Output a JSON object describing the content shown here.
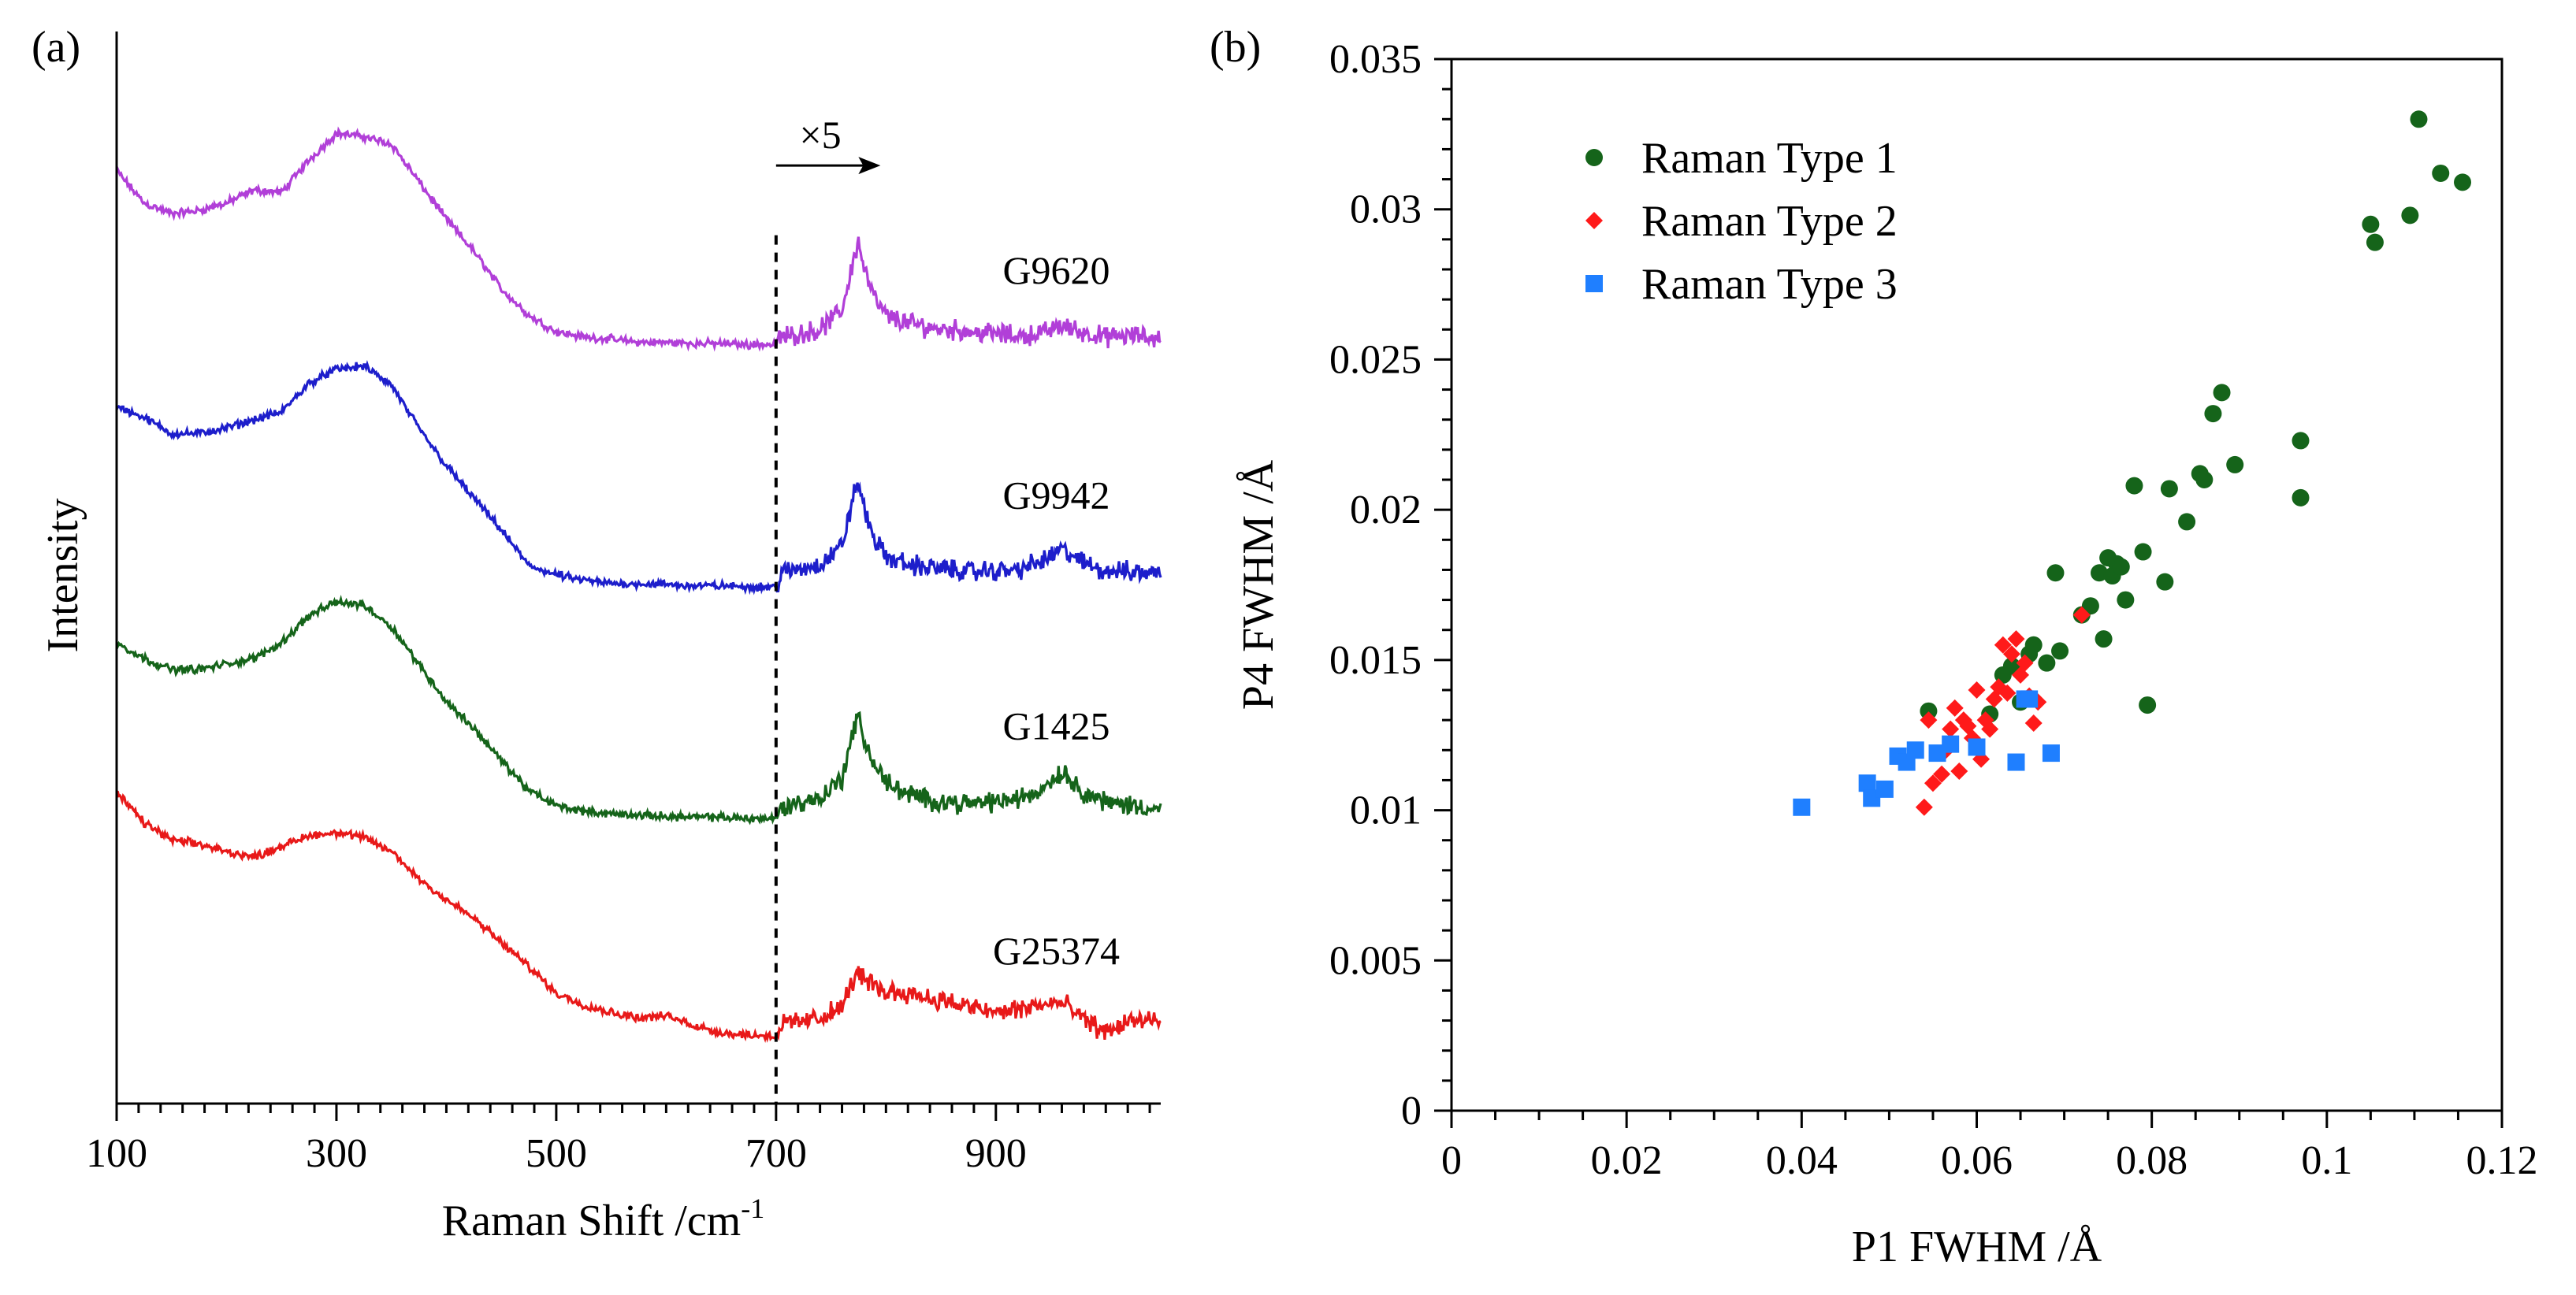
{
  "chart_data": [
    {
      "panel": "(a)",
      "type": "line",
      "title": "",
      "xlabel": "Raman Shift /cm",
      "xlabel_sup": "-1",
      "ylabel": "Intensity",
      "xlim": [
        100,
        1050
      ],
      "ylim": [
        0,
        100
      ],
      "xticks": [
        100,
        300,
        500,
        700,
        900
      ],
      "xtick_labels": [
        "100",
        "300",
        "500",
        "700",
        "900"
      ],
      "minor_tick_step": 20,
      "divider_x": 700,
      "divider_style": "dashed",
      "zoom_annotation": "×5",
      "zoom_arrow": {
        "from": 700,
        "to": 795
      },
      "noise_amplitudes": {
        "G9620": 0.45,
        "G9942": 0.45,
        "G1425": 0.45,
        "G25374": 0.45
      },
      "series": [
        {
          "name": "G9620",
          "color": "#b13fd8",
          "label_x": 955,
          "label_y": 76.5,
          "x": [
            100,
            125,
            150,
            175,
            200,
            225,
            250,
            275,
            300,
            325,
            350,
            375,
            400,
            425,
            450,
            475,
            500,
            525,
            550,
            575,
            600,
            625,
            650,
            675,
            700,
            705,
            720,
            740,
            760,
            770,
            775,
            780,
            790,
            800,
            820,
            840,
            860,
            880,
            900,
            920,
            940,
            960,
            980,
            1000,
            1025,
            1050
          ],
          "y": [
            87,
            84,
            83,
            83.3,
            84,
            85.2,
            85,
            88,
            90.5,
            90.2,
            89.5,
            86,
            82.5,
            79.5,
            76,
            73.5,
            72,
            71.5,
            71.3,
            71,
            71,
            70.9,
            70.9,
            70.8,
            70.8,
            71.5,
            71.8,
            72.2,
            74,
            78.5,
            80.5,
            78,
            75,
            73.5,
            72.8,
            72.4,
            72.2,
            72,
            71.8,
            71.6,
            71.8,
            72.6,
            71.9,
            71.5,
            71.6,
            71.4
          ]
        },
        {
          "name": "G9942",
          "color": "#1d1ecb",
          "label_x": 955,
          "label_y": 55.5,
          "x": [
            100,
            125,
            150,
            175,
            200,
            225,
            250,
            275,
            300,
            325,
            350,
            375,
            400,
            425,
            450,
            475,
            500,
            525,
            550,
            575,
            600,
            625,
            650,
            675,
            700,
            705,
            720,
            740,
            760,
            770,
            775,
            780,
            790,
            800,
            820,
            840,
            860,
            880,
            900,
            920,
            940,
            960,
            980,
            1000,
            1025,
            1050
          ],
          "y": [
            65,
            64,
            62.5,
            62.5,
            63,
            63.8,
            64.5,
            67.2,
            68.5,
            68.8,
            67,
            63,
            59.5,
            56.5,
            53.5,
            50.2,
            49.3,
            48.8,
            48.5,
            48.5,
            48.4,
            48.3,
            48.3,
            48.2,
            48.2,
            49.5,
            49.8,
            50.3,
            52,
            56.5,
            58,
            55.5,
            52.5,
            51,
            50.3,
            50,
            49.8,
            49.6,
            49.7,
            49.8,
            50.5,
            51.7,
            50.4,
            49.7,
            49.6,
            49.5
          ]
        },
        {
          "name": "G1425",
          "color": "#15641a",
          "label_x": 955,
          "label_y": 34,
          "x": [
            100,
            125,
            150,
            175,
            200,
            225,
            250,
            275,
            300,
            325,
            350,
            375,
            400,
            425,
            450,
            475,
            500,
            525,
            550,
            575,
            600,
            625,
            650,
            675,
            700,
            705,
            720,
            740,
            760,
            770,
            775,
            780,
            790,
            800,
            820,
            840,
            860,
            880,
            900,
            920,
            940,
            960,
            980,
            1000,
            1025,
            1050
          ],
          "y": [
            43,
            41.5,
            40.5,
            40.5,
            41,
            41.5,
            43,
            45.5,
            46.8,
            46.5,
            44.5,
            41,
            37.5,
            35,
            32,
            29.2,
            27.8,
            27.3,
            27,
            26.9,
            26.8,
            26.7,
            26.7,
            26.6,
            26.6,
            27.6,
            28,
            28.5,
            30.3,
            34.7,
            36,
            34,
            31.5,
            30,
            28.8,
            28.3,
            28.1,
            28,
            28.2,
            28.4,
            29.2,
            31,
            29,
            28.1,
            27.8,
            27.5
          ]
        },
        {
          "name": "G25374",
          "color": "#e81919",
          "label_x": 955,
          "label_y": 13,
          "x": [
            100,
            125,
            150,
            175,
            200,
            225,
            250,
            275,
            300,
            325,
            350,
            375,
            400,
            425,
            450,
            475,
            500,
            525,
            550,
            575,
            600,
            625,
            650,
            675,
            700,
            705,
            720,
            740,
            760,
            770,
            775,
            780,
            790,
            800,
            820,
            840,
            860,
            880,
            900,
            920,
            940,
            960,
            980,
            1000,
            1025,
            1050
          ],
          "y": [
            29,
            26.2,
            24.6,
            24.2,
            23.5,
            23,
            24,
            25,
            25.3,
            24.8,
            23.5,
            21,
            19,
            17.3,
            15,
            12.8,
            10.3,
            9.2,
            8.5,
            8,
            8.2,
            7.3,
            6.6,
            6.4,
            6.3,
            7.4,
            7.6,
            8,
            9,
            11.5,
            12.3,
            11.5,
            11,
            10.4,
            10.4,
            9.8,
            9.4,
            8.9,
            8.5,
            8.8,
            9.2,
            9.4,
            7.8,
            6.7,
            7.8,
            7.5
          ]
        }
      ]
    },
    {
      "panel": "(b)",
      "type": "scatter",
      "title": "",
      "xlabel": "P1 FWHM /Å",
      "ylabel": "P4 FWHM /Å",
      "xlim": [
        0,
        0.12
      ],
      "ylim": [
        0,
        0.035
      ],
      "xticks": [
        0,
        0.02,
        0.04,
        0.06,
        0.08,
        0.1,
        0.12
      ],
      "xtick_labels": [
        "0",
        "0.02",
        "0.04",
        "0.06",
        "0.08",
        "0.1",
        "0.12"
      ],
      "yticks": [
        0,
        0.005,
        0.01,
        0.015,
        0.02,
        0.025,
        0.03,
        0.035
      ],
      "ytick_labels": [
        "0",
        "0.005",
        "0.01",
        "0.015",
        "0.02",
        "0.025",
        "0.03",
        "0.035"
      ],
      "x_minor_step": 0.005,
      "y_minor_step": 0.001,
      "legend_position": "top-left",
      "series": [
        {
          "name": "Raman Type 1",
          "marker": "circle",
          "color": "#15641a",
          "x": [
            0.0545,
            0.0615,
            0.063,
            0.064,
            0.065,
            0.066,
            0.0665,
            0.068,
            0.069,
            0.0695,
            0.072,
            0.073,
            0.074,
            0.0745,
            0.075,
            0.0755,
            0.076,
            0.0765,
            0.077,
            0.078,
            0.079,
            0.0795,
            0.0815,
            0.082,
            0.084,
            0.0855,
            0.086,
            0.087,
            0.088,
            0.0895,
            0.097,
            0.097,
            0.105,
            0.1055,
            0.1095,
            0.1105,
            0.113,
            0.1155
          ],
          "y": [
            0.0133,
            0.0132,
            0.0145,
            0.0148,
            0.0136,
            0.0152,
            0.0155,
            0.0149,
            0.0179,
            0.0153,
            0.0165,
            0.0168,
            0.0179,
            0.0157,
            0.0184,
            0.0178,
            0.0182,
            0.0181,
            0.017,
            0.0208,
            0.0186,
            0.0135,
            0.0176,
            0.0207,
            0.0196,
            0.0212,
            0.021,
            0.0232,
            0.0239,
            0.0215,
            0.0223,
            0.0204,
            0.0295,
            0.0289,
            0.0298,
            0.033,
            0.0312,
            0.0309
          ]
        },
        {
          "name": "Raman Type 2",
          "marker": "diamond",
          "color": "#ff1a1a",
          "x": [
            0.054,
            0.0545,
            0.055,
            0.056,
            0.0565,
            0.057,
            0.0575,
            0.058,
            0.0585,
            0.059,
            0.0595,
            0.06,
            0.0605,
            0.061,
            0.0615,
            0.062,
            0.0625,
            0.063,
            0.0635,
            0.064,
            0.0645,
            0.065,
            0.0655,
            0.066,
            0.0665,
            0.067,
            0.072
          ],
          "y": [
            0.0101,
            0.013,
            0.0109,
            0.0112,
            0.012,
            0.0127,
            0.0134,
            0.0113,
            0.013,
            0.0128,
            0.0124,
            0.014,
            0.0117,
            0.013,
            0.0127,
            0.0137,
            0.0141,
            0.0155,
            0.0139,
            0.0152,
            0.0157,
            0.0145,
            0.0149,
            0.0138,
            0.0129,
            0.0136,
            0.0165
          ]
        },
        {
          "name": "Raman Type 3",
          "marker": "square",
          "color": "#1f7fff",
          "x": [
            0.04,
            0.0475,
            0.048,
            0.0495,
            0.051,
            0.052,
            0.053,
            0.0555,
            0.057,
            0.06,
            0.0645,
            0.0655,
            0.066,
            0.0685
          ],
          "y": [
            0.0101,
            0.0109,
            0.0104,
            0.0107,
            0.0118,
            0.0116,
            0.012,
            0.0119,
            0.0122,
            0.0121,
            0.0116,
            0.0137,
            0.0137,
            0.0119
          ]
        }
      ]
    }
  ]
}
